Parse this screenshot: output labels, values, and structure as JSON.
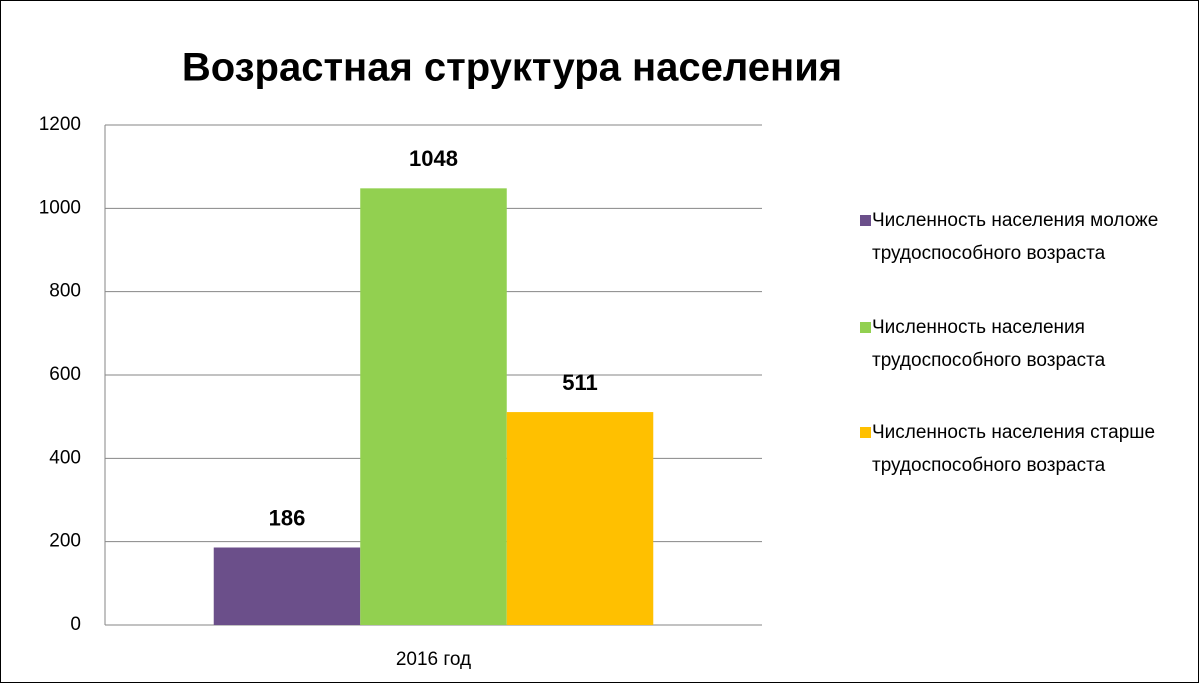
{
  "chart_data": {
    "type": "bar",
    "title": "Возрастная структура населения",
    "categories": [
      "2016 год"
    ],
    "series": [
      {
        "name": "Численность населения моложе трудоспособного возраста",
        "color": "#6b4f8a",
        "values": [
          186
        ]
      },
      {
        "name": "Численность населения трудоспособного возраста",
        "color": "#92d050",
        "values": [
          1048
        ]
      },
      {
        "name": "Численность населения старше трудоспособного возраста",
        "color": "#ffc000",
        "values": [
          511
        ]
      }
    ],
    "ylim": [
      0,
      1200
    ],
    "yticks": [
      0,
      200,
      400,
      600,
      800,
      1000,
      1200
    ],
    "grid": true,
    "legend": "right"
  }
}
